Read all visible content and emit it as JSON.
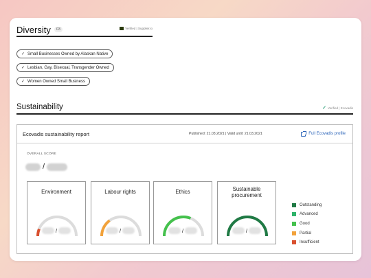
{
  "diversity": {
    "title": "Diversity",
    "count": "03",
    "verified": "Verified | Supplier.io",
    "chips": [
      {
        "label": "Small Businesses Owned by Alaskan Native"
      },
      {
        "label": "Lesbian, Gay, Bisexual, Transgender Owned"
      },
      {
        "label": "Women Owned Small Business"
      }
    ]
  },
  "sustainability": {
    "title": "Sustainability",
    "verified": "Verified | Ecovadis",
    "report": {
      "title": "Ecovadis sustainability report",
      "dates": "Published: 21.03.2021 | Valid until: 21.03.2021",
      "link_label": "Full Ecovadis profile",
      "overall_label": "OVERALL SCORE",
      "separator": "/"
    },
    "categories": [
      {
        "title": "Environment",
        "color": "#d9502f",
        "level": 0.12
      },
      {
        "title": "Labour rights",
        "color": "#f2a23a",
        "level": 0.3
      },
      {
        "title": "Ethics",
        "color": "#45c14d",
        "level": 0.62
      },
      {
        "title": "Sustainable procurement",
        "color": "#207a45",
        "level": 1.0
      }
    ],
    "legend": [
      {
        "label": "Outstanding",
        "color": "#207a45"
      },
      {
        "label": "Advanced",
        "color": "#2fb36a"
      },
      {
        "label": "Good",
        "color": "#45c14d"
      },
      {
        "label": "Partial",
        "color": "#f2a23a"
      },
      {
        "label": "Insufficient",
        "color": "#d9502f"
      }
    ]
  }
}
